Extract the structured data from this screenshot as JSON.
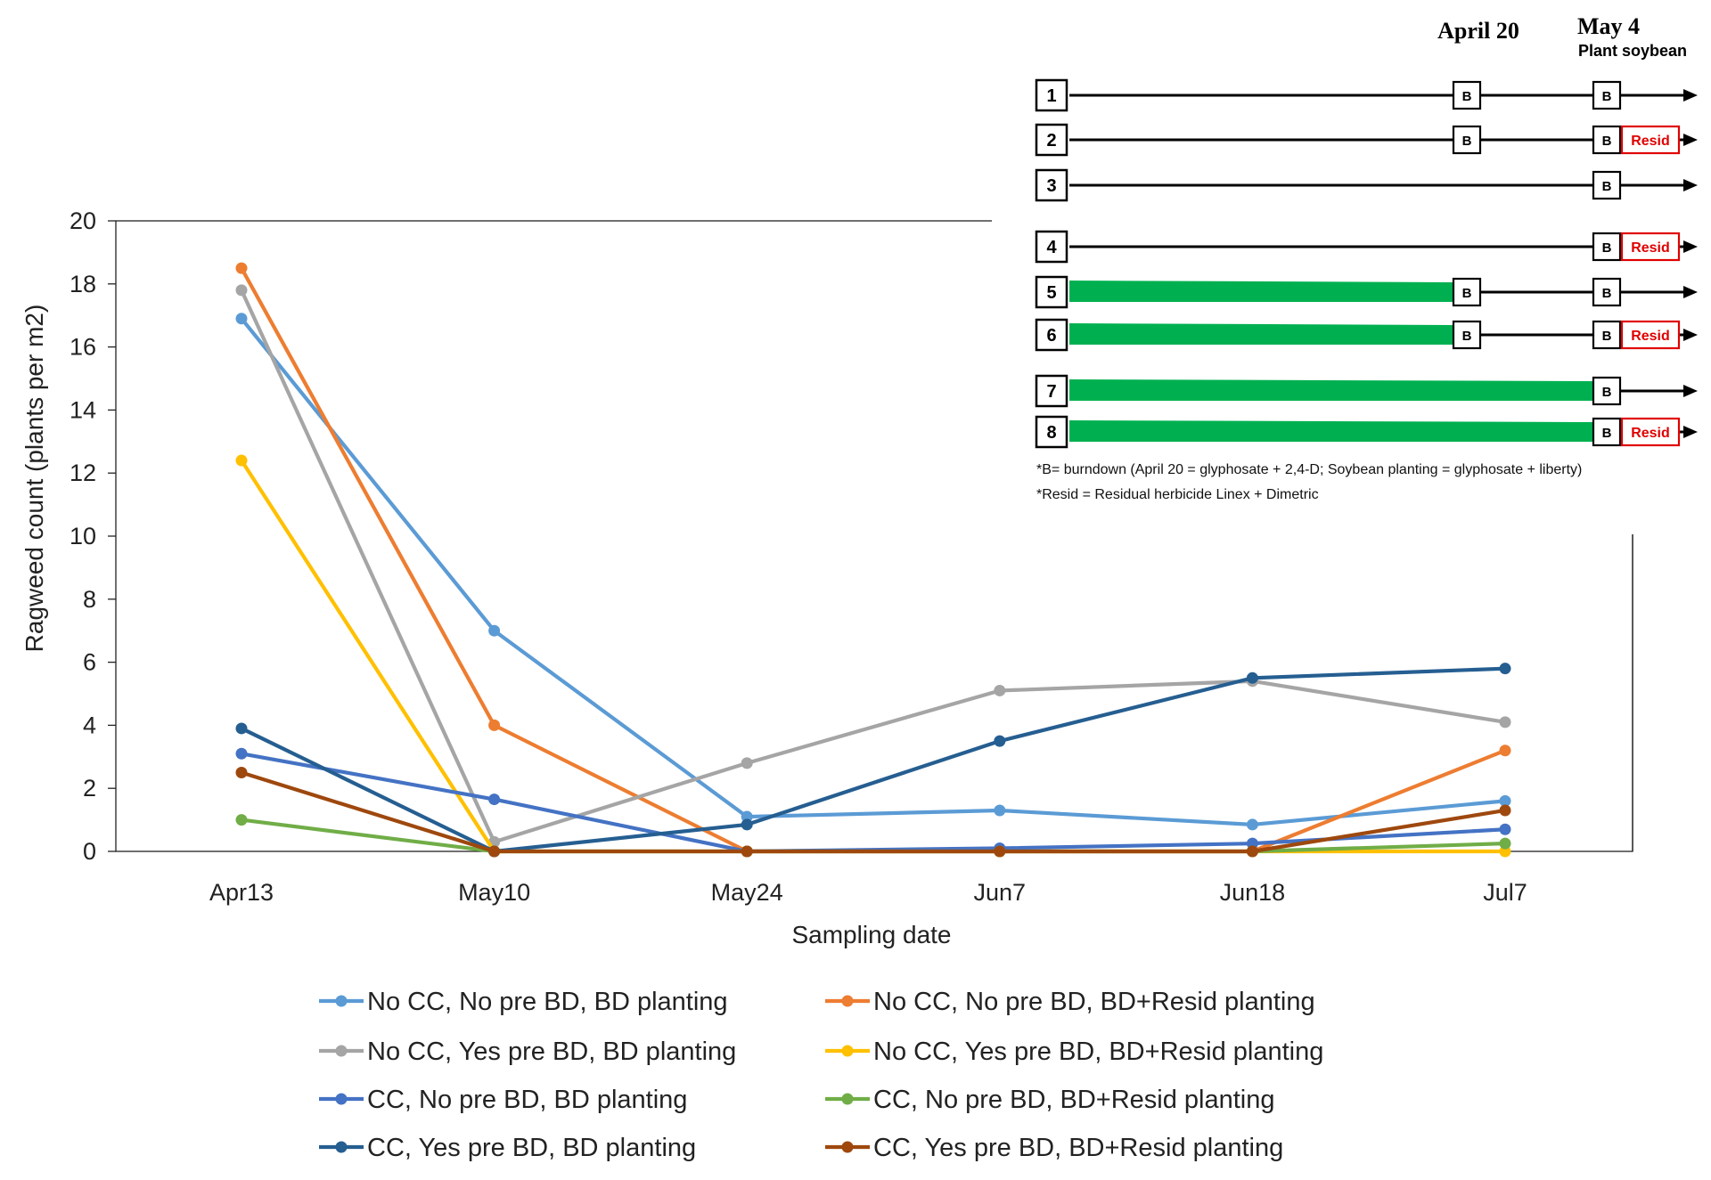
{
  "chart_data": {
    "type": "line",
    "xlabel": "Sampling date",
    "ylabel": "Ragweed count (plants per m2)",
    "categories": [
      "Apr13",
      "May10",
      "May24",
      "Jun7",
      "Jun18",
      "Jul7"
    ],
    "ylim": [
      0,
      20
    ],
    "yticks": [
      0,
      2,
      4,
      6,
      8,
      10,
      12,
      14,
      16,
      18,
      20
    ],
    "grid": false,
    "legend_position": "bottom",
    "series": [
      {
        "name": "No CC, No pre BD, BD planting",
        "color": "#5B9BD5",
        "values": [
          16.9,
          7.0,
          1.1,
          1.3,
          0.85,
          1.6
        ]
      },
      {
        "name": "No CC, No pre BD, BD+Resid planting",
        "color": "#ED7D31",
        "values": [
          18.5,
          4.0,
          0.0,
          0.0,
          0.0,
          3.2
        ]
      },
      {
        "name": "No CC, Yes pre BD, BD planting",
        "color": "#A5A5A5",
        "values": [
          17.8,
          0.3,
          2.8,
          5.1,
          5.4,
          4.1
        ]
      },
      {
        "name": "No CC, Yes pre BD, BD+Resid planting",
        "color": "#FFC000",
        "values": [
          12.4,
          0.0,
          0.0,
          0.0,
          0.0,
          0.0
        ]
      },
      {
        "name": "CC, No pre BD, BD planting",
        "color": "#4472C4",
        "values": [
          3.1,
          1.65,
          0.0,
          0.1,
          0.25,
          0.7
        ]
      },
      {
        "name": "CC, No pre BD, BD+Resid planting",
        "color": "#70AD47",
        "values": [
          1.0,
          0.0,
          0.0,
          0.0,
          0.0,
          0.25
        ]
      },
      {
        "name": "CC, Yes pre BD, BD planting",
        "color": "#255E91",
        "values": [
          3.9,
          0.0,
          0.85,
          3.5,
          5.5,
          5.8
        ]
      },
      {
        "name": "CC, Yes pre BD, BD+Resid planting",
        "color": "#9E480E",
        "values": [
          2.5,
          0.0,
          0.0,
          0.0,
          0.0,
          1.3
        ]
      }
    ]
  },
  "diagram": {
    "dates": [
      {
        "label": "April 20",
        "sub": ""
      },
      {
        "label": "May 4",
        "sub": "Plant soybean"
      }
    ],
    "burndown_label": "B",
    "resid_label": "Resid",
    "cover_crop_color": "#00B050",
    "resid_color": "#E00000",
    "rows": [
      {
        "number": "1",
        "cover_crop_until": "",
        "burndowns": [
          "April 20",
          "May 4"
        ],
        "residual": false
      },
      {
        "number": "2",
        "cover_crop_until": "",
        "burndowns": [
          "April 20",
          "May 4"
        ],
        "residual": true
      },
      {
        "number": "3",
        "cover_crop_until": "",
        "burndowns": [
          "May 4"
        ],
        "residual": false
      },
      {
        "number": "4",
        "cover_crop_until": "",
        "burndowns": [
          "May 4"
        ],
        "residual": true
      },
      {
        "number": "5",
        "cover_crop_until": "April 20",
        "burndowns": [
          "April 20",
          "May 4"
        ],
        "residual": false
      },
      {
        "number": "6",
        "cover_crop_until": "April 20",
        "burndowns": [
          "April 20",
          "May 4"
        ],
        "residual": true
      },
      {
        "number": "7",
        "cover_crop_until": "May 4",
        "burndowns": [
          "May 4"
        ],
        "residual": false
      },
      {
        "number": "8",
        "cover_crop_until": "May 4",
        "burndowns": [
          "May 4"
        ],
        "residual": true
      }
    ],
    "note_burndown": "*B= burndown  (April 20 = glyphosate + 2,4-D; Soybean planting = glyphosate + liberty)",
    "note_resid": "*Resid = Residual herbicide Linex + Dimetric"
  }
}
